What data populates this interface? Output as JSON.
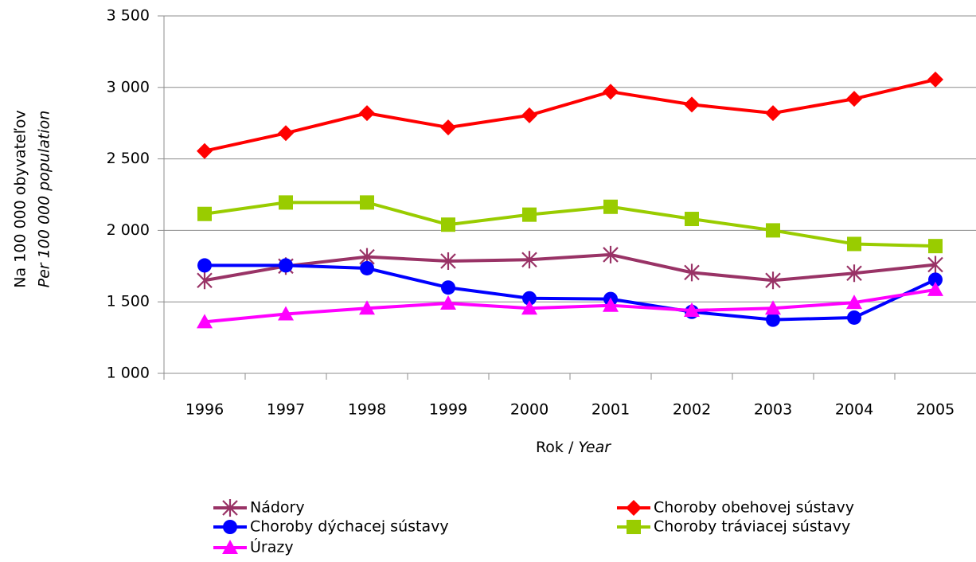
{
  "chart_data": {
    "type": "line",
    "y_label": "Na 100 000 obyvateľov",
    "y_label_en": "Per 100 000 population",
    "x_label": "Rok /",
    "x_label_en": "Year",
    "categories": [
      "1996",
      "1997",
      "1998",
      "1999",
      "2000",
      "2001",
      "2002",
      "2003",
      "2004",
      "2005"
    ],
    "series": [
      {
        "name": "Nádory",
        "color": "#993366",
        "marker": "star",
        "values": [
          1650,
          1750,
          1815,
          1785,
          1795,
          1830,
          1705,
          1650,
          1700,
          1760
        ]
      },
      {
        "name": "Choroby obehovej sústavy",
        "color": "#ff0000",
        "marker": "diamond",
        "values": [
          2555,
          2680,
          2820,
          2720,
          2805,
          2970,
          2880,
          2820,
          2920,
          3055
        ]
      },
      {
        "name": "Choroby dýchacej sústavy",
        "color": "#0000ff",
        "marker": "circle",
        "values": [
          1755,
          1755,
          1735,
          1600,
          1525,
          1520,
          1430,
          1375,
          1390,
          1655
        ]
      },
      {
        "name": "Choroby tráviacej sústavy",
        "color": "#99cc00",
        "marker": "square",
        "values": [
          2115,
          2195,
          2195,
          2040,
          2110,
          2165,
          2080,
          2000,
          1905,
          1890
        ]
      },
      {
        "name": "Úrazy",
        "color": "#ff00ff",
        "marker": "triangle",
        "values": [
          1360,
          1415,
          1455,
          1490,
          1455,
          1475,
          1440,
          1455,
          1495,
          1585
        ]
      }
    ],
    "ylim": [
      1000,
      3500
    ],
    "yticks": [
      {
        "value": 1000,
        "label": "1 000"
      },
      {
        "value": 1500,
        "label": "1 500"
      },
      {
        "value": 2000,
        "label": "2 000"
      },
      {
        "value": 2500,
        "label": "2 500"
      },
      {
        "value": 3000,
        "label": "3 000"
      },
      {
        "value": 3500,
        "label": "3 500"
      }
    ],
    "grid": true,
    "legend": "bottom"
  }
}
